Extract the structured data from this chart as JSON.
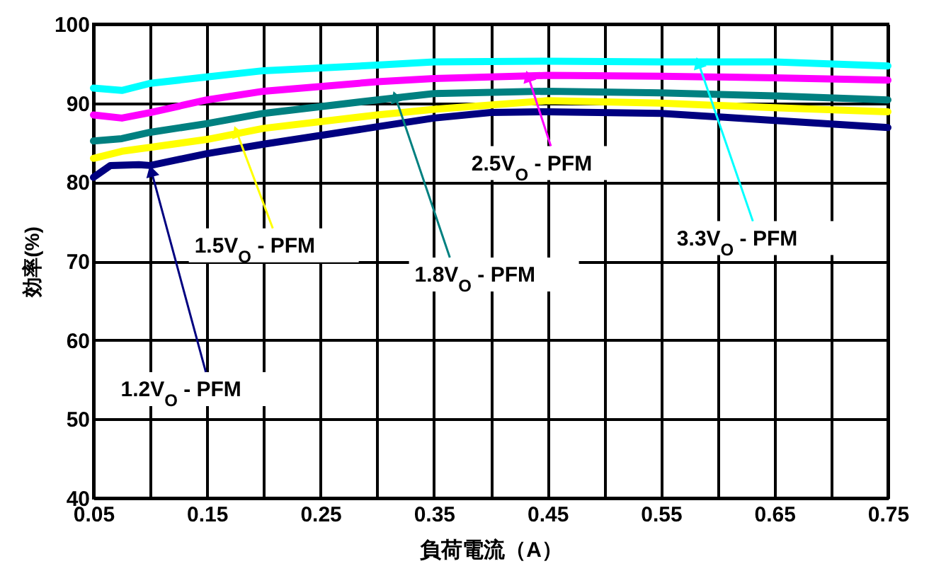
{
  "chart_data": {
    "type": "line",
    "xlabel": "負荷電流（A）",
    "ylabel": "効率(%)",
    "x": [
      0.05,
      0.075,
      0.1,
      0.15,
      0.2,
      0.3,
      0.35,
      0.45,
      0.55,
      0.65,
      0.75
    ],
    "series": [
      {
        "name": "1.2V$_{O}$ - PFM",
        "color": "#000080",
        "x": [
          0.05,
          0.065,
          0.09,
          0.1,
          0.15,
          0.2,
          0.3,
          0.35,
          0.4,
          0.45,
          0.55,
          0.65,
          0.75
        ],
        "values": [
          80.6,
          82.1,
          82.2,
          82.1,
          83.6,
          84.8,
          87.0,
          88.1,
          88.8,
          88.9,
          88.7,
          87.8,
          86.9
        ]
      },
      {
        "name": "1.5V$_{O}$ - PFM",
        "color": "#ffff00",
        "values": [
          83.0,
          83.9,
          84.4,
          85.4,
          86.8,
          88.5,
          89.2,
          90.3,
          90.0,
          89.4,
          88.9
        ]
      },
      {
        "name": "1.8V$_{O}$ - PFM",
        "color": "#008080",
        "values": [
          85.2,
          85.5,
          86.3,
          87.4,
          88.7,
          90.4,
          91.2,
          91.5,
          91.3,
          90.9,
          90.4
        ]
      },
      {
        "name": "2.5V$_{O}$ - PFM",
        "color": "#ff00ff",
        "values": [
          88.5,
          88.1,
          88.8,
          90.4,
          91.5,
          92.7,
          93.1,
          93.5,
          93.4,
          93.2,
          92.9
        ]
      },
      {
        "name": "3.3V$_{O}$ - PFM",
        "color": "#00ffff",
        "values": [
          91.9,
          91.6,
          92.5,
          93.3,
          94.1,
          94.8,
          95.2,
          95.3,
          95.2,
          95.2,
          94.7
        ]
      }
    ],
    "xlim": [
      0.05,
      0.75
    ],
    "xticks": [
      0.05,
      {
        "value": 0.1,
        "label": null
      },
      0.15,
      {
        "value": 0.2,
        "label": null
      },
      0.25,
      {
        "value": 0.3,
        "label": null
      },
      0.35,
      {
        "value": 0.4,
        "label": null
      },
      0.45,
      {
        "value": 0.5,
        "label": null
      },
      0.55,
      {
        "value": 0.6,
        "label": null
      },
      0.65,
      {
        "value": 0.7,
        "label": null
      },
      0.75
    ],
    "ylim": [
      40,
      100
    ],
    "yticks": [
      40,
      50,
      60,
      70,
      80,
      90,
      100
    ],
    "grid": true,
    "legend": false,
    "marker": "none",
    "line_style": "solid"
  }
}
